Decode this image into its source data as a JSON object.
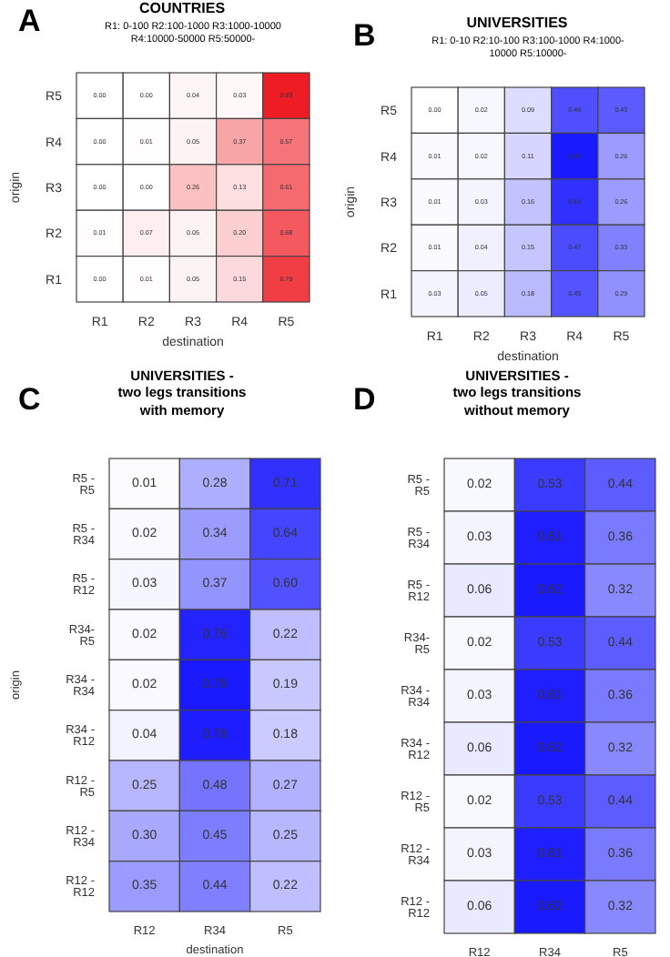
{
  "chart_data": [
    {
      "type": "heatmap",
      "title": "COUNTRIES",
      "subtitle": "R1: 0-100  R2:100-1000  R3:1000-10000  R4:10000-50000  R5:50000-",
      "annotations": [
        "A"
      ],
      "xlabel": "destination",
      "ylabel": "origin",
      "color": "#ee1c24",
      "categories": [
        "R1",
        "R2",
        "R3",
        "R4",
        "R5"
      ],
      "y_categories": [
        "R5",
        "R4",
        "R3",
        "R2",
        "R1"
      ],
      "cells": [
        [
          0.0,
          0.0,
          0.04,
          0.03,
          0.93
        ],
        [
          0.0,
          0.01,
          0.05,
          0.37,
          0.57
        ],
        [
          0.0,
          0.0,
          0.26,
          0.13,
          0.61
        ],
        [
          0.01,
          0.07,
          0.05,
          0.2,
          0.68
        ],
        [
          0.0,
          0.01,
          0.05,
          0.15,
          0.79
        ]
      ],
      "cell_labels": [
        [
          "0.00",
          "0.00",
          "0.04",
          "0.03",
          "0.93"
        ],
        [
          "0.00",
          "0.01",
          "0.05",
          "0.37",
          "0.57"
        ],
        [
          "0.00",
          "0.00",
          "0.26",
          "0.13",
          "0.61"
        ],
        [
          "0.01",
          "0.07",
          "0.05",
          "0.20",
          "0.68"
        ],
        [
          "0.00",
          "0.01",
          "0.05",
          "0.15",
          "0.79"
        ]
      ]
    },
    {
      "type": "heatmap",
      "title": "UNIVERSITIES",
      "subtitle": "R1: 0-10  R2:10-100  R3:100-1000  R4:1000-10000  R5:10000-",
      "annotations": [
        "B"
      ],
      "xlabel": "destination",
      "ylabel": "origin",
      "color": "#1a1aff",
      "categories": [
        "R1",
        "R2",
        "R3",
        "R4",
        "R5"
      ],
      "y_categories": [
        "R5",
        "R4",
        "R3",
        "R2",
        "R1"
      ],
      "cells": [
        [
          0.0,
          0.02,
          0.09,
          0.46,
          0.43
        ],
        [
          0.01,
          0.02,
          0.11,
          0.6,
          0.26
        ],
        [
          0.01,
          0.03,
          0.16,
          0.54,
          0.26
        ],
        [
          0.01,
          0.04,
          0.15,
          0.47,
          0.33
        ],
        [
          0.03,
          0.05,
          0.18,
          0.45,
          0.29
        ]
      ],
      "cell_labels": [
        [
          "0.00",
          "0.02",
          "0.09",
          "0.46",
          "0.43"
        ],
        [
          "0.01",
          "0.02",
          "0.11",
          "0.60",
          "0.26"
        ],
        [
          "0.01",
          "0.03",
          "0.16",
          "0.54",
          "0.26"
        ],
        [
          "0.01",
          "0.04",
          "0.15",
          "0.47",
          "0.33"
        ],
        [
          "0.03",
          "0.05",
          "0.18",
          "0.45",
          "0.29"
        ]
      ]
    },
    {
      "type": "heatmap",
      "title": "UNIVERSITIES -\ntwo legs transitions\nwith memory",
      "annotations": [
        "C"
      ],
      "xlabel": "destination",
      "ylabel": "origin",
      "color": "#1a1aff",
      "categories": [
        "R12",
        "R34",
        "R5"
      ],
      "y_categories": [
        "R5 - R5",
        "R5 - R34",
        "R5 - R12",
        "R34- R5",
        "R34 - R34",
        "R34 - R12",
        "R12 - R5",
        "R12 - R34",
        "R12 - R12"
      ],
      "cells": [
        [
          0.01,
          0.28,
          0.71
        ],
        [
          0.02,
          0.34,
          0.64
        ],
        [
          0.03,
          0.37,
          0.6
        ],
        [
          0.02,
          0.76,
          0.22
        ],
        [
          0.02,
          0.79,
          0.19
        ],
        [
          0.04,
          0.78,
          0.18
        ],
        [
          0.25,
          0.48,
          0.27
        ],
        [
          0.3,
          0.45,
          0.25
        ],
        [
          0.35,
          0.44,
          0.22
        ]
      ],
      "cell_labels": [
        [
          "0.01",
          "0.28",
          "0.71"
        ],
        [
          "0.02",
          "0.34",
          "0.64"
        ],
        [
          "0.03",
          "0.37",
          "0.60"
        ],
        [
          "0.02",
          "0.76",
          "0.22"
        ],
        [
          "0.02",
          "0.79",
          "0.19"
        ],
        [
          "0.04",
          "0.78",
          "0.18"
        ],
        [
          "0.25",
          "0.48",
          "0.27"
        ],
        [
          "0.30",
          "0.45",
          "0.25"
        ],
        [
          "0.35",
          "0.44",
          "0.22"
        ]
      ]
    },
    {
      "type": "heatmap",
      "title": "UNIVERSITIES -\ntwo legs transitions\nwithout memory",
      "annotations": [
        "D"
      ],
      "color": "#1a1aff",
      "categories": [
        "R12",
        "R34",
        "R5"
      ],
      "y_categories": [
        "R5 - R5",
        "R5 - R34",
        "R5 - R12",
        "R34- R5",
        "R34 - R34",
        "R34 - R12",
        "R12 - R5",
        "R12 - R34",
        "R12 - R12"
      ],
      "cells": [
        [
          0.02,
          0.53,
          0.44
        ],
        [
          0.03,
          0.61,
          0.36
        ],
        [
          0.06,
          0.62,
          0.32
        ],
        [
          0.02,
          0.53,
          0.44
        ],
        [
          0.03,
          0.61,
          0.36
        ],
        [
          0.06,
          0.62,
          0.32
        ],
        [
          0.02,
          0.53,
          0.44
        ],
        [
          0.03,
          0.61,
          0.36
        ],
        [
          0.06,
          0.62,
          0.32
        ]
      ],
      "cell_labels": [
        [
          "0.02",
          "0.53",
          "0.44"
        ],
        [
          "0.03",
          "0.61",
          "0.36"
        ],
        [
          "0.06",
          "0.62",
          "0.32"
        ],
        [
          "0.02",
          "0.53",
          "0.44"
        ],
        [
          "0.03",
          "0.61",
          "0.36"
        ],
        [
          "0.06",
          "0.62",
          "0.32"
        ],
        [
          "0.02",
          "0.53",
          "0.44"
        ],
        [
          "0.03",
          "0.61",
          "0.36"
        ],
        [
          "0.06",
          "0.62",
          "0.32"
        ]
      ]
    }
  ]
}
